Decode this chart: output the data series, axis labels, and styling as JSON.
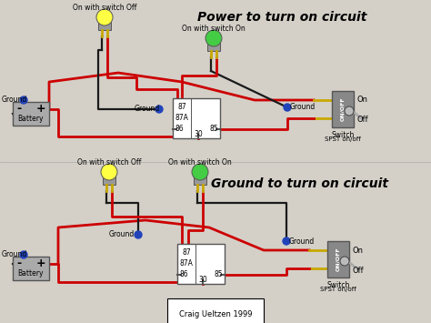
{
  "bg_color": "#d4d0c8",
  "title1": "Power to turn on circuit",
  "title2": "Ground to turn on circuit",
  "credit": "Craig Ueltzen 1999",
  "relay_pins": [
    "87",
    "87A",
    "86",
    "85",
    "30"
  ],
  "wire_color": "#cc0000",
  "dark_wire": "#1a1a1a",
  "yellow_wire": "#c8a800",
  "blue_dot": "#2244bb",
  "lamp_yellow": "#ffff44",
  "lamp_green": "#44cc44",
  "lamp_body": "#909090",
  "battery_fill": "#aaaaaa",
  "relay_fill": "#ffffff",
  "switch_fill": "#888888"
}
